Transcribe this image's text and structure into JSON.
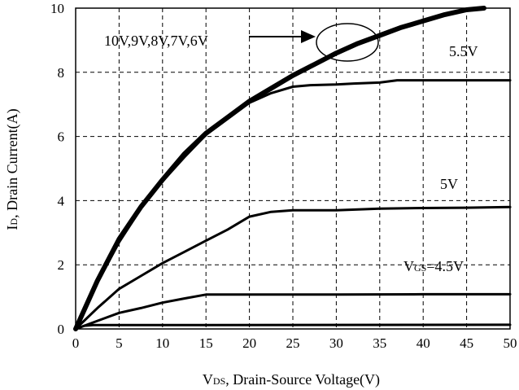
{
  "chart_data": {
    "type": "line",
    "xlabel": {
      "prefix": "V",
      "sub": "DS",
      "rest": ", Drain-Source Voltage(V)"
    },
    "ylabel": {
      "prefix": "I",
      "sub": "D",
      "rest": ", Drain Current(A)"
    },
    "xlim": [
      0,
      50
    ],
    "ylim": [
      0,
      10
    ],
    "xticks": [
      0,
      5,
      10,
      15,
      20,
      25,
      30,
      35,
      40,
      45,
      50
    ],
    "yticks": [
      0,
      2,
      4,
      6,
      8,
      10
    ],
    "grid": true,
    "series": [
      {
        "name": "10V,9V,8V,7V,6V",
        "bundle": 5,
        "points": [
          [
            0,
            0
          ],
          [
            2.5,
            1.5
          ],
          [
            5,
            2.8
          ],
          [
            7.5,
            3.8
          ],
          [
            10,
            4.65
          ],
          [
            12.5,
            5.45
          ],
          [
            15,
            6.1
          ],
          [
            17.5,
            6.6
          ],
          [
            20,
            7.1
          ],
          [
            22.5,
            7.5
          ],
          [
            25,
            7.9
          ],
          [
            27.5,
            8.25
          ],
          [
            30,
            8.6
          ],
          [
            32.5,
            8.9
          ],
          [
            35,
            9.15
          ],
          [
            37.5,
            9.4
          ],
          [
            40,
            9.6
          ],
          [
            42.5,
            9.8
          ],
          [
            45,
            9.95
          ],
          [
            47,
            10
          ]
        ]
      },
      {
        "name": "5.5V",
        "points": [
          [
            0,
            0
          ],
          [
            2.5,
            1.45
          ],
          [
            5,
            2.7
          ],
          [
            7.5,
            3.75
          ],
          [
            10,
            4.6
          ],
          [
            12.5,
            5.35
          ],
          [
            15,
            6.05
          ],
          [
            17.5,
            6.55
          ],
          [
            20,
            7.05
          ],
          [
            22.5,
            7.35
          ],
          [
            25,
            7.55
          ],
          [
            27,
            7.6
          ],
          [
            30,
            7.62
          ],
          [
            32,
            7.65
          ],
          [
            35,
            7.68
          ],
          [
            37,
            7.75
          ],
          [
            40,
            7.75
          ],
          [
            45,
            7.75
          ],
          [
            50,
            7.75
          ]
        ]
      },
      {
        "name": "5V",
        "points": [
          [
            0,
            0
          ],
          [
            2.5,
            0.65
          ],
          [
            5,
            1.25
          ],
          [
            7.5,
            1.65
          ],
          [
            10,
            2.05
          ],
          [
            12.5,
            2.4
          ],
          [
            15,
            2.75
          ],
          [
            17.5,
            3.1
          ],
          [
            20,
            3.5
          ],
          [
            22.5,
            3.65
          ],
          [
            25,
            3.7
          ],
          [
            30,
            3.7
          ],
          [
            35,
            3.75
          ],
          [
            40,
            3.77
          ],
          [
            45,
            3.78
          ],
          [
            50,
            3.8
          ]
        ]
      },
      {
        "name": "V_GS=4.5V",
        "points": [
          [
            0,
            0
          ],
          [
            2.5,
            0.25
          ],
          [
            5,
            0.5
          ],
          [
            7.5,
            0.65
          ],
          [
            10,
            0.82
          ],
          [
            12.5,
            0.95
          ],
          [
            15,
            1.07
          ],
          [
            20,
            1.07
          ],
          [
            25,
            1.07
          ],
          [
            30,
            1.07
          ],
          [
            40,
            1.08
          ],
          [
            50,
            1.08
          ]
        ]
      },
      {
        "points": [
          [
            0,
            0
          ],
          [
            1,
            0.1
          ],
          [
            2,
            0.12
          ],
          [
            50,
            0.13
          ]
        ]
      }
    ],
    "annotations": {
      "bundle_label": "10V,9V,8V,7V,6V",
      "label_55": "5.5V",
      "label_5": "5V",
      "label_45_prefix": "V",
      "label_45_sub": "GS",
      "label_45_rest": "=4.5V"
    }
  }
}
